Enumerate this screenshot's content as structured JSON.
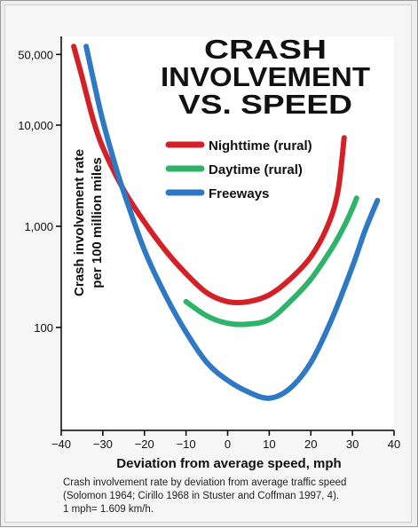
{
  "chart_data": {
    "type": "line",
    "title": [
      "CRASH",
      "INVOLVEMENT",
      "VS. SPEED"
    ],
    "xlabel": "Deviation from average speed, mph",
    "ylabel": [
      "Crash involvement rate",
      "per 100 million miles"
    ],
    "xlim": [
      -40,
      40
    ],
    "ylim": [
      20,
      80000
    ],
    "yscale": "log",
    "x_ticks": [
      "−40",
      "−30",
      "−20",
      "−10",
      "0",
      "10",
      "20",
      "30",
      "40"
    ],
    "x_tick_values": [
      -40,
      -30,
      -20,
      -10,
      0,
      10,
      20,
      30,
      40
    ],
    "y_ticks": [
      "50,000",
      "10,000",
      "1,000",
      "100"
    ],
    "y_tick_values": [
      50000,
      10000,
      1000,
      100
    ],
    "grid": false,
    "legend_position": "top-right",
    "series": [
      {
        "name": "Nighttime (rural)",
        "color": "#d42027",
        "points": [
          [
            -37,
            60000
          ],
          [
            -35,
            30000
          ],
          [
            -32.5,
            12000
          ],
          [
            -30,
            6000
          ],
          [
            -25,
            2300
          ],
          [
            -20,
            1100
          ],
          [
            -15,
            580
          ],
          [
            -10,
            340
          ],
          [
            -5,
            220
          ],
          [
            0,
            180
          ],
          [
            5,
            180
          ],
          [
            10,
            210
          ],
          [
            15,
            300
          ],
          [
            20,
            500
          ],
          [
            24,
            1000
          ],
          [
            26.5,
            2200
          ],
          [
            28,
            7500
          ]
        ]
      },
      {
        "name": "Daytime (rural)",
        "color": "#2fb36b",
        "points": [
          [
            -10,
            180
          ],
          [
            -5,
            130
          ],
          [
            0,
            110
          ],
          [
            5,
            108
          ],
          [
            10,
            120
          ],
          [
            15,
            180
          ],
          [
            20,
            300
          ],
          [
            25,
            600
          ],
          [
            28,
            1000
          ],
          [
            30,
            1500
          ],
          [
            31,
            1900
          ]
        ]
      },
      {
        "name": "Freeways",
        "color": "#2f78c4",
        "points": [
          [
            -34,
            60000
          ],
          [
            -32,
            25000
          ],
          [
            -30,
            11000
          ],
          [
            -27,
            4000
          ],
          [
            -25,
            2200
          ],
          [
            -20,
            580
          ],
          [
            -15,
            210
          ],
          [
            -10,
            90
          ],
          [
            -5,
            45
          ],
          [
            0,
            30
          ],
          [
            5,
            23
          ],
          [
            10,
            20
          ],
          [
            15,
            25
          ],
          [
            20,
            45
          ],
          [
            25,
            120
          ],
          [
            30,
            400
          ],
          [
            33,
            900
          ],
          [
            36,
            1800
          ]
        ]
      }
    ]
  },
  "caption": [
    "Crash involvement rate by deviation from average traffic speed",
    "(Solomon 1964; Cirillo 1968 in Stuster and Coffman 1997, 4).",
    "1 mph= 1.609 km/h."
  ]
}
